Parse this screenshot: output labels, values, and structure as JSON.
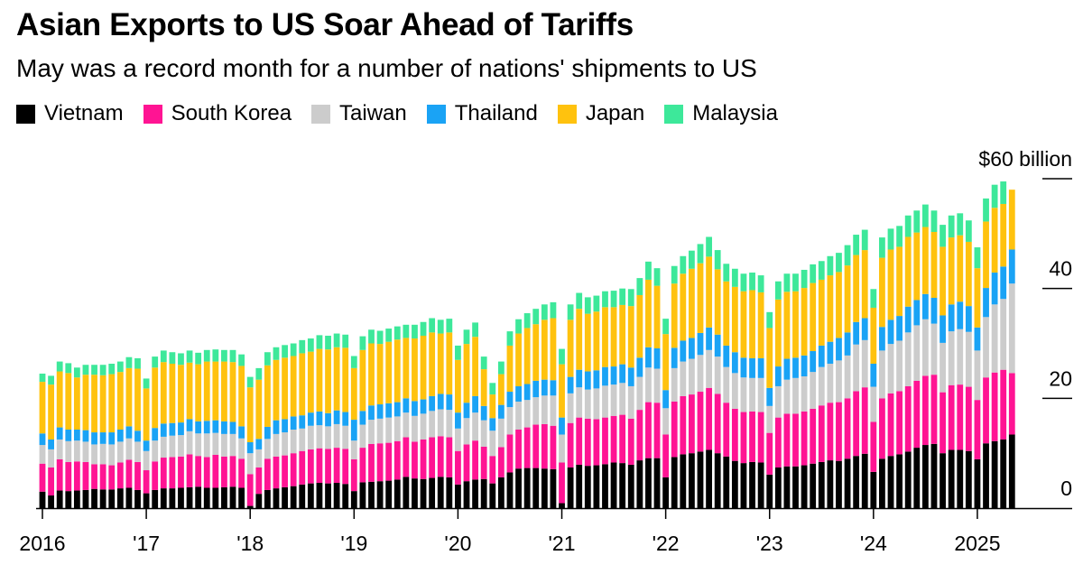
{
  "chart_data": {
    "type": "bar",
    "stacked": true,
    "title": "Asian Exports to US Soar Ahead of Tariffs",
    "subtitle": "May was a record month for a number of nations' shipments to US",
    "unit_label": "$60 billion",
    "ylim": [
      0,
      60
    ],
    "y_ticks": [
      {
        "value": 60,
        "label": "$60 billion"
      },
      {
        "value": 40,
        "label": "40"
      },
      {
        "value": 20,
        "label": "20"
      },
      {
        "value": 0,
        "label": "0"
      }
    ],
    "x_ticks": [
      "2016",
      "'17",
      "'18",
      "'19",
      "'20",
      "'21",
      "'22",
      "'23",
      "'24",
      "2025"
    ],
    "start": "2016-01",
    "months": 113,
    "series": [
      {
        "name": "Vietnam",
        "color": "#000000",
        "values": [
          3.0,
          2.3,
          3.2,
          3.1,
          3.2,
          3.3,
          3.5,
          3.4,
          3.4,
          3.6,
          3.7,
          3.3,
          2.7,
          3.3,
          3.6,
          3.6,
          3.7,
          3.8,
          3.9,
          3.7,
          3.7,
          3.8,
          3.9,
          3.7,
          0.4,
          2.6,
          3.3,
          3.6,
          3.8,
          4.0,
          4.3,
          4.5,
          4.6,
          4.5,
          4.6,
          4.4,
          3.1,
          4.7,
          4.8,
          4.9,
          5.0,
          5.2,
          5.7,
          5.4,
          5.3,
          5.5,
          5.7,
          5.6,
          4.3,
          4.9,
          5.2,
          5.3,
          4.5,
          5.6,
          6.5,
          7.2,
          7.3,
          7.3,
          7.2,
          7.1,
          0.9,
          7.4,
          7.9,
          7.7,
          7.8,
          8.0,
          8.3,
          8.2,
          7.9,
          8.7,
          9.1,
          9.1,
          5.6,
          9.3,
          9.8,
          10.0,
          10.3,
          10.6,
          10.0,
          9.4,
          8.6,
          8.2,
          8.4,
          8.3,
          6.1,
          7.4,
          7.6,
          7.6,
          7.8,
          8.1,
          8.4,
          8.7,
          8.6,
          9.0,
          9.5,
          9.9,
          6.6,
          9.0,
          9.5,
          9.8,
          10.3,
          11.0,
          11.5,
          11.7,
          10.0,
          10.6,
          10.6,
          10.4,
          8.9,
          11.8,
          12.2,
          12.5,
          13.4
        ]
      },
      {
        "name": "South Korea",
        "color": "#ff1493",
        "values": [
          5.1,
          5.1,
          5.7,
          5.3,
          5.3,
          5.1,
          4.5,
          4.6,
          4.4,
          4.7,
          5.1,
          5.1,
          4.2,
          5.2,
          5.6,
          5.7,
          5.7,
          6.0,
          5.6,
          5.6,
          6.0,
          5.6,
          5.6,
          5.3,
          5.8,
          4.8,
          5.7,
          5.8,
          5.8,
          6.0,
          6.1,
          6.2,
          6.3,
          6.3,
          6.4,
          6.4,
          5.8,
          6.3,
          6.9,
          6.9,
          6.9,
          7.0,
          7.2,
          6.7,
          7.2,
          7.4,
          7.4,
          7.3,
          6.1,
          6.7,
          7.1,
          5.9,
          5.0,
          5.5,
          6.9,
          7.1,
          7.4,
          7.9,
          8.1,
          7.9,
          7.4,
          8.1,
          8.6,
          8.6,
          8.4,
          8.5,
          8.5,
          8.8,
          8.4,
          9.2,
          10.2,
          10.1,
          7.8,
          10.1,
          10.6,
          10.7,
          10.9,
          11.3,
          10.8,
          9.8,
          9.5,
          9.3,
          9.2,
          9.2,
          7.6,
          9.1,
          9.6,
          9.6,
          9.8,
          10.0,
          10.3,
          10.5,
          10.7,
          11.0,
          11.8,
          12.1,
          9.1,
          11.0,
          11.4,
          11.5,
          11.9,
          12.2,
          12.6,
          12.6,
          11.1,
          11.8,
          11.9,
          11.7,
          10.8,
          12.0,
          12.5,
          12.7,
          11.2
        ]
      },
      {
        "name": "Taiwan",
        "color": "#cccccc",
        "values": [
          3.4,
          3.3,
          3.6,
          3.8,
          3.8,
          3.7,
          3.6,
          3.7,
          3.8,
          3.8,
          3.9,
          3.7,
          3.5,
          3.8,
          3.8,
          3.9,
          3.9,
          4.2,
          4.1,
          4.3,
          4.0,
          4.1,
          4.0,
          3.7,
          3.8,
          3.3,
          3.6,
          4.1,
          4.2,
          4.3,
          4.1,
          4.3,
          4.2,
          4.1,
          4.3,
          4.2,
          3.4,
          4.2,
          4.4,
          4.5,
          4.6,
          4.5,
          4.5,
          4.7,
          4.7,
          4.8,
          4.9,
          5.0,
          4.1,
          4.8,
          5.1,
          4.8,
          4.6,
          5.2,
          5.0,
          5.1,
          5.0,
          5.0,
          5.2,
          5.5,
          5.1,
          5.4,
          5.5,
          5.3,
          5.6,
          5.8,
          5.7,
          5.8,
          5.9,
          6.0,
          6.3,
          6.2,
          4.8,
          6.1,
          6.3,
          6.5,
          6.7,
          6.9,
          6.8,
          6.5,
          6.5,
          6.3,
          6.1,
          6.2,
          4.9,
          5.7,
          6.2,
          6.5,
          6.4,
          6.7,
          7.0,
          7.1,
          7.6,
          7.8,
          8.5,
          8.6,
          6.4,
          8.7,
          9.0,
          9.2,
          9.8,
          10.1,
          10.3,
          9.3,
          9.0,
          9.8,
          10.1,
          10.0,
          9.0,
          11.0,
          12.4,
          12.9,
          16.3
        ]
      },
      {
        "name": "Thailand",
        "color": "#1aa3f5",
        "values": [
          2.1,
          1.8,
          2.2,
          2.1,
          2.0,
          2.1,
          2.2,
          2.1,
          2.2,
          2.2,
          2.2,
          2.0,
          1.9,
          2.3,
          2.4,
          2.3,
          2.3,
          2.2,
          2.2,
          2.3,
          2.3,
          2.3,
          2.2,
          2.2,
          2.0,
          1.9,
          2.2,
          2.5,
          2.4,
          2.4,
          2.4,
          2.4,
          2.5,
          2.4,
          2.5,
          2.5,
          3.8,
          2.5,
          2.6,
          2.6,
          2.6,
          2.6,
          2.6,
          2.7,
          2.6,
          2.7,
          2.8,
          2.8,
          2.9,
          2.8,
          3.0,
          2.6,
          2.3,
          2.5,
          2.8,
          2.8,
          2.9,
          3.0,
          2.9,
          2.8,
          3.1,
          3.0,
          3.2,
          3.3,
          3.3,
          3.4,
          3.3,
          3.4,
          3.4,
          3.5,
          3.7,
          3.7,
          3.3,
          3.7,
          3.8,
          3.8,
          4.0,
          4.1,
          4.0,
          3.9,
          3.8,
          3.6,
          3.6,
          3.6,
          3.3,
          3.6,
          3.8,
          3.7,
          3.8,
          3.8,
          3.9,
          4.0,
          4.1,
          4.2,
          4.1,
          4.0,
          4.2,
          4.3,
          4.4,
          4.5,
          4.7,
          4.6,
          4.6,
          4.7,
          5.0,
          4.9,
          5.0,
          4.7,
          4.2,
          5.3,
          5.8,
          5.9,
          6.2
        ]
      },
      {
        "name": "Japan",
        "color": "#ffc20e",
        "values": [
          9.4,
          10.0,
          10.2,
          10.3,
          9.5,
          10.1,
          10.5,
          10.4,
          10.6,
          10.5,
          10.6,
          11.3,
          9.5,
          11.0,
          11.2,
          10.8,
          10.5,
          10.3,
          10.4,
          10.8,
          10.7,
          10.9,
          10.9,
          11.0,
          10.0,
          10.8,
          11.2,
          11.0,
          11.2,
          11.0,
          11.3,
          11.1,
          11.4,
          11.6,
          11.5,
          11.7,
          9.4,
          11.1,
          11.3,
          11.0,
          11.2,
          11.4,
          11.0,
          11.4,
          11.6,
          11.6,
          11.0,
          11.3,
          9.6,
          10.7,
          10.8,
          6.7,
          4.3,
          5.6,
          8.4,
          9.6,
          10.2,
          10.3,
          10.9,
          11.3,
          9.7,
          10.4,
          11.1,
          10.5,
          10.7,
          10.9,
          10.8,
          10.8,
          11.2,
          11.4,
          12.3,
          11.4,
          10.2,
          11.7,
          12.2,
          12.6,
          12.7,
          12.9,
          11.9,
          11.7,
          11.9,
          12.1,
          12.4,
          12.0,
          10.9,
          12.2,
          12.2,
          12.1,
          12.3,
          12.4,
          12.0,
          12.1,
          12.0,
          12.2,
          12.2,
          12.4,
          10.2,
          12.6,
          12.8,
          12.6,
          12.7,
          12.3,
          12.2,
          12.0,
          12.5,
          12.2,
          12.1,
          11.7,
          10.8,
          12.1,
          11.8,
          11.4,
          10.9
        ]
      },
      {
        "name": "Malaysia",
        "color": "#3de89a",
        "values": [
          1.5,
          1.6,
          1.8,
          1.8,
          1.8,
          1.8,
          1.8,
          1.9,
          1.9,
          1.9,
          2.0,
          1.9,
          1.8,
          2.0,
          2.1,
          2.1,
          2.1,
          2.2,
          2.1,
          2.1,
          2.2,
          2.1,
          2.2,
          2.1,
          1.9,
          2.1,
          2.4,
          2.3,
          2.3,
          2.3,
          2.4,
          2.4,
          2.5,
          2.5,
          2.5,
          2.4,
          2.2,
          2.5,
          2.5,
          2.4,
          2.4,
          2.4,
          2.4,
          2.5,
          2.5,
          2.6,
          2.5,
          2.5,
          2.6,
          2.6,
          2.6,
          2.3,
          2.1,
          2.3,
          2.6,
          2.6,
          2.7,
          2.8,
          2.8,
          2.9,
          2.8,
          2.8,
          2.9,
          3.0,
          2.9,
          2.9,
          3.0,
          3.0,
          3.1,
          3.1,
          3.3,
          3.2,
          2.8,
          3.2,
          3.2,
          3.3,
          3.5,
          3.6,
          3.5,
          3.2,
          3.3,
          3.2,
          3.2,
          3.1,
          2.9,
          3.3,
          3.3,
          3.2,
          3.3,
          3.4,
          3.4,
          3.5,
          3.5,
          3.7,
          3.7,
          3.7,
          3.4,
          3.7,
          3.8,
          3.8,
          3.9,
          4.0,
          4.1,
          3.9,
          4.0,
          4.0,
          4.0,
          3.9,
          3.8,
          4.2,
          4.2,
          4.1,
          0.0
        ]
      }
    ]
  }
}
